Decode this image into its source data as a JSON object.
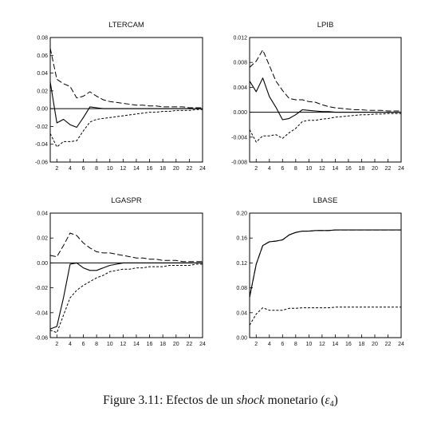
{
  "caption": {
    "label": "Figure 3.11:",
    "pre": "Efectos de un",
    "emph": "shock",
    "post": "monetario",
    "symbol": "ε",
    "subscript": "4"
  },
  "chart_data": [
    {
      "type": "line",
      "title": "LTERCAM",
      "xlim": [
        1,
        24
      ],
      "ylim": [
        -0.06,
        0.08
      ],
      "x_ticks": [
        "2",
        "4",
        "6",
        "8",
        "10",
        "12",
        "14",
        "16",
        "18",
        "20",
        "22",
        "24"
      ],
      "y_ticks": [
        "0.08",
        "0.06",
        "0.04",
        "0.02",
        "0.00",
        "-0.02",
        "-0.04",
        "-0.06"
      ],
      "zero_line": true,
      "x": [
        1,
        2,
        3,
        4,
        5,
        6,
        7,
        8,
        9,
        10,
        11,
        12,
        13,
        14,
        15,
        16,
        17,
        18,
        19,
        20,
        21,
        22,
        23,
        24
      ],
      "series": [
        {
          "role": "response",
          "values": [
            0.03,
            -0.016,
            -0.012,
            -0.018,
            -0.021,
            -0.01,
            0.002,
            0.001,
            0.0,
            0.0,
            0.0,
            0.0,
            0.0,
            0.0,
            0.0,
            0.0,
            0.0,
            0.0,
            0.0,
            0.0,
            0.0,
            0.0,
            0.0,
            0.0
          ]
        },
        {
          "role": "upper",
          "values": [
            0.068,
            0.033,
            0.028,
            0.025,
            0.012,
            0.014,
            0.019,
            0.014,
            0.01,
            0.008,
            0.007,
            0.006,
            0.005,
            0.004,
            0.004,
            0.003,
            0.003,
            0.002,
            0.002,
            0.002,
            0.002,
            0.001,
            0.001,
            0.001
          ]
        },
        {
          "role": "lower",
          "values": [
            -0.028,
            -0.043,
            -0.037,
            -0.037,
            -0.036,
            -0.025,
            -0.015,
            -0.012,
            -0.011,
            -0.01,
            -0.009,
            -0.008,
            -0.007,
            -0.006,
            -0.005,
            -0.004,
            -0.004,
            -0.003,
            -0.003,
            -0.002,
            -0.002,
            -0.002,
            -0.001,
            -0.001
          ]
        }
      ]
    },
    {
      "type": "line",
      "title": "LPIB",
      "xlim": [
        1,
        24
      ],
      "ylim": [
        -0.008,
        0.012
      ],
      "x_ticks": [
        "2",
        "4",
        "6",
        "8",
        "10",
        "12",
        "14",
        "16",
        "18",
        "20",
        "22",
        "24"
      ],
      "y_ticks": [
        "0.012",
        "0.008",
        "0.004",
        "0.000",
        "-0.004",
        "-0.008"
      ],
      "zero_line": true,
      "x": [
        1,
        2,
        3,
        4,
        5,
        6,
        7,
        8,
        9,
        10,
        11,
        12,
        13,
        14,
        15,
        16,
        17,
        18,
        19,
        20,
        21,
        22,
        23,
        24
      ],
      "series": [
        {
          "role": "response",
          "values": [
            0.005,
            0.0033,
            0.0055,
            0.0025,
            0.0008,
            -0.0012,
            -0.001,
            -0.0004,
            0.0004,
            0.0003,
            0.0002,
            0.0001,
            0.0001,
            0.0,
            0.0,
            0.0,
            0.0,
            0.0,
            0.0,
            0.0,
            0.0,
            0.0,
            0.0,
            0.0
          ]
        },
        {
          "role": "upper",
          "values": [
            0.0072,
            0.0082,
            0.01,
            0.0075,
            0.005,
            0.0035,
            0.0022,
            0.002,
            0.002,
            0.0017,
            0.0016,
            0.0012,
            0.0009,
            0.0007,
            0.0006,
            0.0005,
            0.0004,
            0.0004,
            0.0003,
            0.0003,
            0.0003,
            0.0002,
            0.0002,
            0.0002
          ]
        },
        {
          "role": "lower",
          "values": [
            -0.0028,
            -0.0048,
            -0.0038,
            -0.0038,
            -0.0036,
            -0.0042,
            -0.0033,
            -0.0026,
            -0.0015,
            -0.0013,
            -0.0013,
            -0.0011,
            -0.001,
            -0.0008,
            -0.0007,
            -0.0006,
            -0.0005,
            -0.0004,
            -0.0004,
            -0.0003,
            -0.0003,
            -0.0002,
            -0.0002,
            -0.0002
          ]
        }
      ]
    },
    {
      "type": "line",
      "title": "LGASPR",
      "xlim": [
        1,
        24
      ],
      "ylim": [
        -0.06,
        0.04
      ],
      "x_ticks": [
        "2",
        "4",
        "6",
        "8",
        "10",
        "12",
        "14",
        "16",
        "18",
        "20",
        "22",
        "24"
      ],
      "y_ticks": [
        "0.04",
        "0.02",
        "0.00",
        "-0.02",
        "-0.04",
        "-0.06"
      ],
      "zero_line": true,
      "x": [
        1,
        2,
        3,
        4,
        5,
        6,
        7,
        8,
        9,
        10,
        11,
        12,
        13,
        14,
        15,
        16,
        17,
        18,
        19,
        20,
        21,
        22,
        23,
        24
      ],
      "series": [
        {
          "role": "response",
          "values": [
            -0.053,
            -0.051,
            -0.028,
            -0.001,
            0.0,
            -0.004,
            -0.006,
            -0.006,
            -0.004,
            -0.002,
            -0.001,
            0.0,
            0.0,
            0.0,
            0.0,
            0.0,
            0.0,
            0.0,
            0.0,
            0.0,
            0.0,
            0.0,
            0.0,
            0.0
          ]
        },
        {
          "role": "upper",
          "values": [
            0.006,
            0.005,
            0.014,
            0.024,
            0.022,
            0.016,
            0.012,
            0.009,
            0.008,
            0.008,
            0.007,
            0.006,
            0.005,
            0.004,
            0.004,
            0.003,
            0.003,
            0.002,
            0.002,
            0.002,
            0.001,
            0.001,
            0.001,
            0.001
          ]
        },
        {
          "role": "lower",
          "values": [
            -0.054,
            -0.056,
            -0.042,
            -0.028,
            -0.022,
            -0.018,
            -0.015,
            -0.012,
            -0.01,
            -0.007,
            -0.006,
            -0.005,
            -0.005,
            -0.004,
            -0.004,
            -0.003,
            -0.003,
            -0.003,
            -0.002,
            -0.002,
            -0.002,
            -0.002,
            -0.001,
            -0.001
          ]
        }
      ]
    },
    {
      "type": "line",
      "title": "LBASE",
      "xlim": [
        1,
        24
      ],
      "ylim": [
        0.0,
        0.2
      ],
      "x_ticks": [
        "2",
        "4",
        "6",
        "8",
        "10",
        "12",
        "14",
        "16",
        "18",
        "20",
        "22",
        "24"
      ],
      "y_ticks": [
        "0.20",
        "0.16",
        "0.12",
        "0.08",
        "0.04",
        "0.00"
      ],
      "zero_line": false,
      "x": [
        1,
        2,
        3,
        4,
        5,
        6,
        7,
        8,
        9,
        10,
        11,
        12,
        13,
        14,
        15,
        16,
        17,
        18,
        19,
        20,
        21,
        22,
        23,
        24
      ],
      "series": [
        {
          "role": "response",
          "values": [
            0.065,
            0.118,
            0.148,
            0.154,
            0.155,
            0.157,
            0.165,
            0.169,
            0.171,
            0.171,
            0.172,
            0.172,
            0.172,
            0.173,
            0.173,
            0.173,
            0.173,
            0.173,
            0.173,
            0.173,
            0.173,
            0.173,
            0.173,
            0.173
          ]
        },
        {
          "role": "upper",
          "values": [
            0.065,
            0.118,
            0.148,
            0.154,
            0.155,
            0.157,
            0.165,
            0.169,
            0.171,
            0.171,
            0.172,
            0.172,
            0.172,
            0.173,
            0.173,
            0.173,
            0.173,
            0.173,
            0.173,
            0.173,
            0.173,
            0.173,
            0.173,
            0.173
          ]
        },
        {
          "role": "lower",
          "values": [
            0.02,
            0.038,
            0.048,
            0.044,
            0.044,
            0.044,
            0.047,
            0.047,
            0.048,
            0.048,
            0.048,
            0.048,
            0.048,
            0.049,
            0.049,
            0.049,
            0.049,
            0.049,
            0.049,
            0.049,
            0.049,
            0.049,
            0.049,
            0.049
          ]
        }
      ]
    }
  ]
}
